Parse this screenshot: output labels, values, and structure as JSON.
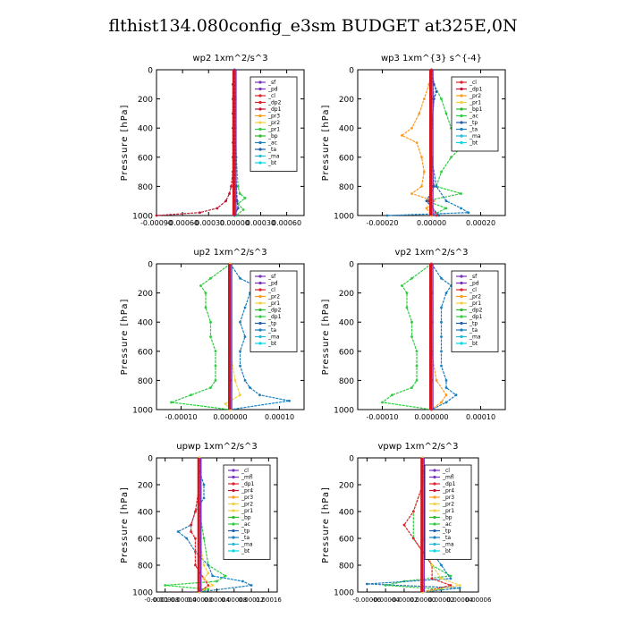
{
  "title": "flthist134.080config_e3sm  BUDGET at325E,0N",
  "chart_data": [
    {
      "type": "line",
      "title": "wp2  1xm^2/s^3",
      "ylabel": "Pressure [hPa]",
      "ylim": [
        1000,
        0
      ],
      "yticks": [
        "0",
        "200",
        "400",
        "600",
        "800",
        "1000"
      ],
      "xlim": [
        -0.0009,
        0.0008
      ],
      "xticks": [
        "-0.00090",
        "-0.00060",
        "-0.00030",
        "0.00000",
        "0.00030",
        "0.00060"
      ],
      "xtick_values": [
        -0.0009,
        -0.0006,
        -0.0003,
        0.0,
        0.0003,
        0.0006
      ],
      "legend": [
        "_sf",
        "_pd",
        "_cl",
        "_dp2",
        "_dp1",
        "_pr3",
        "_pr2",
        "_pr1",
        "_bp",
        "_ac",
        "_ta",
        "_ma",
        "_bt"
      ],
      "legend_colors": [
        "#7b2fbe",
        "#7b2fbe",
        "#e0202a",
        "#e0202a",
        "#c8102e",
        "#ff9a1a",
        "#f4d03f",
        "#2ecc40",
        "#2eb82e",
        "#1a7fbf",
        "#1f5fa8",
        "#26b9d4",
        "#00d8e8"
      ],
      "series": [
        {
          "name": "_dp1",
          "color": "#c8102e",
          "pressure": [
            0,
            100,
            200,
            300,
            400,
            500,
            600,
            700,
            800,
            850,
            900,
            950,
            980,
            1000
          ],
          "values": [
            0,
            -2e-05,
            -2e-05,
            -2e-05,
            -2e-05,
            -2e-05,
            -2e-05,
            -2e-05,
            -4e-05,
            -6e-05,
            -0.0001,
            -0.0002,
            -0.0004,
            -0.0009
          ]
        },
        {
          "name": "_pr1",
          "color": "#2ecc40",
          "pressure": [
            0,
            200,
            400,
            600,
            800,
            850,
            880,
            920,
            960,
            1000
          ],
          "values": [
            0,
            1e-05,
            1e-05,
            2e-05,
            4e-05,
            6e-05,
            0.00012,
            4e-05,
            0.0001,
            2e-05
          ]
        },
        {
          "name": "_ta",
          "color": "#1f5fa8",
          "pressure": [
            0,
            200,
            400,
            600,
            800,
            900,
            950,
            1000
          ],
          "values": [
            0,
            0.0,
            0.0,
            1e-05,
            2e-05,
            3e-05,
            4e-05,
            0.0
          ]
        },
        {
          "name": "_sf",
          "color": "#7b2fbe",
          "pressure": [
            0,
            200,
            400,
            600,
            800,
            900,
            1000
          ],
          "values": [
            0,
            0.0,
            0.0,
            0.0,
            0.0,
            0.0,
            0.0
          ]
        }
      ]
    },
    {
      "type": "line",
      "title": "wp3  1xm^{3} s^{-4}",
      "ylabel": "Pressure [hPa]",
      "ylim": [
        1000,
        0
      ],
      "yticks": [
        "0",
        "200",
        "400",
        "600",
        "800",
        "1000"
      ],
      "xlim": [
        -0.0003,
        0.0003
      ],
      "xticks": [
        "-0.00020",
        "0.00000",
        "0.00020"
      ],
      "xtick_values": [
        -0.0002,
        0.0,
        0.0002
      ],
      "legend": [
        "_cl",
        "_dp1",
        "_pr2",
        "_pr1",
        "_bp1",
        "_ac",
        "_tp",
        "_ta",
        "_ma",
        "_bt"
      ],
      "legend_colors": [
        "#e0202a",
        "#c8102e",
        "#ff9a1a",
        "#f4d03f",
        "#2eb82e",
        "#2ecc40",
        "#1f5fa8",
        "#1a7fbf",
        "#26b9d4",
        "#00d8e8"
      ],
      "series": [
        {
          "name": "_ac",
          "color": "#2ecc40",
          "pressure": [
            0,
            100,
            200,
            300,
            400,
            500,
            550,
            600,
            700,
            800,
            850,
            900,
            950,
            1000
          ],
          "values": [
            0,
            1e-05,
            4e-05,
            6e-05,
            8e-05,
            0.0001,
            0.00011,
            8e-05,
            4e-05,
            2e-05,
            0.00012,
            -2e-05,
            6e-05,
            0.0
          ]
        },
        {
          "name": "_pr2",
          "color": "#ff9a1a",
          "pressure": [
            0,
            100,
            200,
            300,
            400,
            450,
            500,
            600,
            700,
            800,
            850,
            900,
            950,
            1000
          ],
          "values": [
            0,
            -1e-05,
            -3e-05,
            -5e-05,
            -8e-05,
            -0.00012,
            -6e-05,
            -4e-05,
            -3e-05,
            -4e-05,
            -8e-05,
            1e-05,
            -2e-05,
            0.0
          ]
        },
        {
          "name": "_ta",
          "color": "#1a7fbf",
          "pressure": [
            0,
            200,
            400,
            600,
            800,
            900,
            950,
            980,
            1000
          ],
          "values": [
            0,
            1e-05,
            0.0,
            0.0,
            2e-05,
            6e-05,
            0.00012,
            0.00015,
            -0.00018
          ]
        },
        {
          "name": "_tp",
          "color": "#1f5fa8",
          "pressure": [
            0,
            100,
            150,
            200,
            400,
            600,
            800,
            900,
            1000
          ],
          "values": [
            0,
            1e-05,
            2e-05,
            1e-05,
            0.0,
            0.0,
            1e-05,
            -2e-05,
            3e-05
          ]
        },
        {
          "name": "_cl",
          "color": "#e0202a",
          "pressure": [
            0,
            200,
            400,
            600,
            800,
            900,
            1000
          ],
          "values": [
            0,
            0.0,
            0.0,
            0.0,
            0.0,
            -1e-05,
            2e-05
          ]
        }
      ]
    },
    {
      "type": "line",
      "title": "up2  1xm^2/s^3",
      "ylabel": "Pressure [hPa]",
      "ylim": [
        1000,
        0
      ],
      "yticks": [
        "0",
        "200",
        "400",
        "600",
        "800",
        "1000"
      ],
      "xlim": [
        -0.00015,
        0.00015
      ],
      "xticks": [
        "-0.00010",
        "0.000000",
        "0.00010"
      ],
      "xtick_values": [
        -0.0001,
        0.0,
        0.0001
      ],
      "legend": [
        "_sf",
        "_pd",
        "_cl",
        "_pr2",
        "_pr1",
        "_dp2",
        "_dp1",
        "_tp",
        "_ta",
        "_ma",
        "_bt"
      ],
      "legend_colors": [
        "#7b2fbe",
        "#7b2fbe",
        "#e0202a",
        "#ff9a1a",
        "#f4d03f",
        "#2eb82e",
        "#2ecc40",
        "#1f5fa8",
        "#1a7fbf",
        "#26b9d4",
        "#00d8e8"
      ],
      "series": [
        {
          "name": "_dp2",
          "color": "#2ecc40",
          "pressure": [
            0,
            100,
            150,
            200,
            300,
            400,
            500,
            600,
            700,
            800,
            850,
            900,
            950,
            1000
          ],
          "values": [
            0,
            -4e-05,
            -6e-05,
            -5e-05,
            -5e-05,
            -4e-05,
            -4e-05,
            -3e-05,
            -3e-05,
            -3e-05,
            -4e-05,
            -8e-05,
            -0.00012,
            0.0
          ]
        },
        {
          "name": "_tp",
          "color": "#1a7fbf",
          "pressure": [
            0,
            100,
            150,
            200,
            300,
            400,
            500,
            600,
            700,
            800,
            850,
            900,
            940,
            1000
          ],
          "values": [
            0,
            2e-05,
            5e-05,
            4e-05,
            3e-05,
            2e-05,
            3e-05,
            2e-05,
            2e-05,
            3e-05,
            4e-05,
            6e-05,
            0.00012,
            0.0
          ]
        },
        {
          "name": "_dp1",
          "color": "#e0202a",
          "pressure": [
            0,
            200,
            400,
            600,
            800,
            1000
          ],
          "values": [
            0,
            0.0,
            0.0,
            0.0,
            0.0,
            0.0
          ]
        },
        {
          "name": "_pr1",
          "color": "#f4d03f",
          "pressure": [
            0,
            200,
            400,
            600,
            800,
            900,
            960,
            1000
          ],
          "values": [
            0,
            0.0,
            0.0,
            0.0,
            1e-05,
            2e-05,
            -1e-05,
            0.0
          ]
        }
      ]
    },
    {
      "type": "line",
      "title": "vp2  1xm^2/s^3",
      "ylabel": "Pressure [hPa]",
      "ylim": [
        1000,
        0
      ],
      "yticks": [
        "0",
        "200",
        "400",
        "600",
        "800",
        "1000"
      ],
      "xlim": [
        -0.00015,
        0.00015
      ],
      "xticks": [
        "-0.00010",
        "0.000000",
        "0.00010"
      ],
      "xtick_values": [
        -0.0001,
        0.0,
        0.0001
      ],
      "legend": [
        "_sf",
        "_pd",
        "_cl",
        "_pr2",
        "_pr1",
        "_dp2",
        "_dp1",
        "_tp",
        "_ta",
        "_ma",
        "_bt"
      ],
      "legend_colors": [
        "#7b2fbe",
        "#7b2fbe",
        "#e0202a",
        "#ff9a1a",
        "#f4d03f",
        "#2eb82e",
        "#2ecc40",
        "#1f5fa8",
        "#1a7fbf",
        "#26b9d4",
        "#00d8e8"
      ],
      "series": [
        {
          "name": "_dp2",
          "color": "#2ecc40",
          "pressure": [
            0,
            100,
            150,
            200,
            300,
            400,
            500,
            600,
            700,
            800,
            850,
            900,
            950,
            1000
          ],
          "values": [
            0,
            -4e-05,
            -6e-05,
            -5e-05,
            -5e-05,
            -4e-05,
            -4e-05,
            -3e-05,
            -3e-05,
            -3e-05,
            -4e-05,
            -8e-05,
            -0.0001,
            0.0
          ]
        },
        {
          "name": "_tp",
          "color": "#1a7fbf",
          "pressure": [
            0,
            100,
            150,
            200,
            300,
            400,
            500,
            600,
            700,
            800,
            850,
            900,
            950,
            1000
          ],
          "values": [
            0,
            2e-05,
            4e-05,
            3e-05,
            2e-05,
            2e-05,
            2e-05,
            2e-05,
            2e-05,
            3e-05,
            3e-05,
            5e-05,
            3e-05,
            0.0
          ]
        },
        {
          "name": "_pr2",
          "color": "#ff9a1a",
          "pressure": [
            0,
            200,
            400,
            600,
            800,
            900,
            950,
            1000
          ],
          "values": [
            0,
            0.0,
            0.0,
            0.0,
            1e-05,
            3e-05,
            2e-05,
            0.0
          ]
        },
        {
          "name": "_dp1",
          "color": "#e0202a",
          "pressure": [
            0,
            200,
            400,
            600,
            800,
            1000
          ],
          "values": [
            0,
            0.0,
            0.0,
            0.0,
            0.0,
            0.0
          ]
        }
      ]
    },
    {
      "type": "line",
      "title": "upwp  1xm^2/s^3",
      "ylabel": "Pressure [hPa]",
      "ylim": [
        1000,
        0
      ],
      "yticks": [
        "0",
        "200",
        "400",
        "600",
        "800",
        "1000"
      ],
      "xlim": [
        -0.0001,
        0.00018
      ],
      "xticks": [
        "-0.0001",
        "-0.00008",
        "-0.00004",
        "0.00000",
        "0.00004",
        "0.00008",
        "0.00012",
        "0.00016"
      ],
      "xtick_values": [
        -0.0001,
        -8e-05,
        -4e-05,
        0.0,
        4e-05,
        8e-05,
        0.00012,
        0.00016
      ],
      "legend": [
        "_cl",
        "_mfl",
        "_dp1",
        "_pr4",
        "_pr3",
        "_pr2",
        "_pr1",
        "_bp",
        "_ac",
        "_tp",
        "_ta",
        "_ma",
        "_bt"
      ],
      "legend_colors": [
        "#7b2fbe",
        "#7b2fbe",
        "#e0202a",
        "#c8102e",
        "#ff9a1a",
        "#f4d03f",
        "#f4d03f",
        "#2eb82e",
        "#2ecc40",
        "#1f5fa8",
        "#1a7fbf",
        "#26b9d4",
        "#00d8e8"
      ],
      "series": [
        {
          "name": "_ac",
          "color": "#2ecc40",
          "pressure": [
            0,
            200,
            400,
            600,
            800,
            880,
            920,
            950,
            980,
            1000
          ],
          "values": [
            0,
            0.0,
            0.0,
            1e-05,
            2e-05,
            6e-05,
            4e-05,
            -8e-05,
            2e-05,
            0.0
          ]
        },
        {
          "name": "_ta",
          "color": "#1a7fbf",
          "pressure": [
            0,
            100,
            200,
            300,
            400,
            500,
            550,
            600,
            700,
            800,
            880,
            920,
            950,
            1000
          ],
          "values": [
            0,
            0.0,
            1e-05,
            1e-05,
            -1e-05,
            -2e-05,
            -5e-05,
            -3e-05,
            -1e-05,
            2e-05,
            3e-05,
            0.0001,
            0.00012,
            0.0
          ]
        },
        {
          "name": "_dp1",
          "color": "#e0202a",
          "pressure": [
            0,
            200,
            400,
            500,
            550,
            600,
            800,
            900,
            950,
            1000
          ],
          "values": [
            0,
            0.0,
            -1e-05,
            -2e-05,
            -2e-05,
            -1e-05,
            -1e-05,
            1e-05,
            2e-05,
            0.0
          ]
        },
        {
          "name": "_pr2",
          "color": "#f4d03f",
          "pressure": [
            0,
            200,
            400,
            600,
            800,
            860,
            900,
            950,
            1000
          ],
          "values": [
            0,
            0.0,
            0.0,
            0.0,
            1e-05,
            2e-05,
            1e-05,
            3e-05,
            0.0
          ]
        }
      ]
    },
    {
      "type": "line",
      "title": "vpwp  1xm^2/s^3",
      "ylabel": "Pressure [hPa]",
      "ylim": [
        1000,
        0
      ],
      "yticks": [
        "0",
        "200",
        "400",
        "600",
        "800",
        "1000"
      ],
      "xlim": [
        -7e-05,
        6e-05
      ],
      "xticks": [
        "-0.00006",
        "-0.00004",
        "-0.00002",
        "0.00000",
        "0.00002",
        "0.00004",
        "0.00006"
      ],
      "xtick_values": [
        -6e-05,
        -4e-05,
        -2e-05,
        0.0,
        2e-05,
        4e-05,
        6e-05
      ],
      "legend": [
        "_cl",
        "_mfl",
        "_dp1",
        "_pr4",
        "_pr3",
        "_pr2",
        "_pr1",
        "_bp",
        "_ac",
        "_tp",
        "_ta",
        "_ma",
        "_bt"
      ],
      "legend_colors": [
        "#7b2fbe",
        "#7b2fbe",
        "#e0202a",
        "#c8102e",
        "#ff9a1a",
        "#f4d03f",
        "#f4d03f",
        "#2eb82e",
        "#2ecc40",
        "#1f5fa8",
        "#1a7fbf",
        "#26b9d4",
        "#00d8e8"
      ],
      "series": [
        {
          "name": "_ac",
          "color": "#2ecc40",
          "pressure": [
            0,
            200,
            400,
            600,
            800,
            880,
            920,
            950,
            980,
            1000
          ],
          "values": [
            0,
            0.0,
            -1e-05,
            -1e-05,
            1e-05,
            3e-05,
            -2e-05,
            -4e-05,
            2e-05,
            0.0
          ]
        },
        {
          "name": "_ta",
          "color": "#1a7fbf",
          "pressure": [
            0,
            100,
            200,
            300,
            400,
            500,
            600,
            700,
            800,
            900,
            940,
            970,
            1000
          ],
          "values": [
            0,
            0.0,
            1e-05,
            1e-05,
            2e-05,
            1e-05,
            0.0,
            1e-05,
            2e-05,
            3e-05,
            -6e-05,
            4e-05,
            0.0
          ]
        },
        {
          "name": "_dp1",
          "color": "#e0202a",
          "pressure": [
            0,
            200,
            400,
            500,
            600,
            800,
            900,
            950,
            1000
          ],
          "values": [
            0,
            0.0,
            -1e-05,
            -2e-05,
            -1e-05,
            1e-05,
            1e-05,
            3e-05,
            0.0
          ]
        },
        {
          "name": "_pr3",
          "color": "#f4d03f",
          "pressure": [
            0,
            200,
            400,
            600,
            800,
            900,
            950,
            1000
          ],
          "values": [
            0,
            0.0,
            0.0,
            0.0,
            1e-05,
            2e-05,
            4e-05,
            0.0
          ]
        }
      ]
    }
  ]
}
